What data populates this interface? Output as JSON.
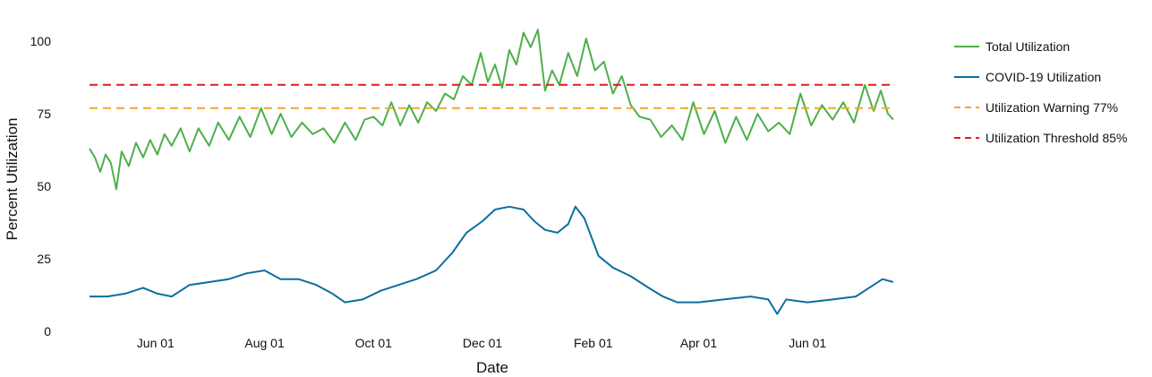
{
  "chart_data": {
    "type": "line",
    "xlabel": "Date",
    "ylabel": "Percent Utilization",
    "grid": false,
    "legend_position": "right",
    "x_range": [
      "2020-04-25",
      "2021-07-19"
    ],
    "ylim": [
      0,
      105
    ],
    "y_ticks": [
      0,
      25,
      50,
      75,
      100
    ],
    "y_tick_labels": [
      "0",
      "25",
      "50",
      "75",
      "100"
    ],
    "x_ticks": [
      "2020-06-01",
      "2020-08-01",
      "2020-10-01",
      "2020-12-01",
      "2021-02-01",
      "2021-04-01",
      "2021-06-01"
    ],
    "x_tick_labels": [
      "Jun 01",
      "Aug 01",
      "Oct 01",
      "Dec 01",
      "Feb 01",
      "Apr 01",
      "Jun 01"
    ],
    "series": [
      {
        "name": "Total Utilization",
        "color": "#4daf4a",
        "style": "solid",
        "points": [
          [
            "2020-04-25",
            63
          ],
          [
            "2020-04-28",
            60
          ],
          [
            "2020-05-01",
            55
          ],
          [
            "2020-05-04",
            61
          ],
          [
            "2020-05-07",
            58
          ],
          [
            "2020-05-10",
            49
          ],
          [
            "2020-05-13",
            62
          ],
          [
            "2020-05-17",
            57
          ],
          [
            "2020-05-21",
            65
          ],
          [
            "2020-05-25",
            60
          ],
          [
            "2020-05-29",
            66
          ],
          [
            "2020-06-02",
            61
          ],
          [
            "2020-06-06",
            68
          ],
          [
            "2020-06-10",
            64
          ],
          [
            "2020-06-15",
            70
          ],
          [
            "2020-06-20",
            62
          ],
          [
            "2020-06-25",
            70
          ],
          [
            "2020-07-01",
            64
          ],
          [
            "2020-07-06",
            72
          ],
          [
            "2020-07-12",
            66
          ],
          [
            "2020-07-18",
            74
          ],
          [
            "2020-07-24",
            67
          ],
          [
            "2020-07-30",
            77
          ],
          [
            "2020-08-05",
            68
          ],
          [
            "2020-08-10",
            75
          ],
          [
            "2020-08-16",
            67
          ],
          [
            "2020-08-22",
            72
          ],
          [
            "2020-08-28",
            68
          ],
          [
            "2020-09-03",
            70
          ],
          [
            "2020-09-09",
            65
          ],
          [
            "2020-09-15",
            72
          ],
          [
            "2020-09-21",
            66
          ],
          [
            "2020-09-26",
            73
          ],
          [
            "2020-10-01",
            74
          ],
          [
            "2020-10-06",
            71
          ],
          [
            "2020-10-11",
            79
          ],
          [
            "2020-10-16",
            71
          ],
          [
            "2020-10-21",
            78
          ],
          [
            "2020-10-26",
            72
          ],
          [
            "2020-10-31",
            79
          ],
          [
            "2020-11-05",
            76
          ],
          [
            "2020-11-10",
            82
          ],
          [
            "2020-11-15",
            80
          ],
          [
            "2020-11-20",
            88
          ],
          [
            "2020-11-25",
            85
          ],
          [
            "2020-11-30",
            96
          ],
          [
            "2020-12-04",
            86
          ],
          [
            "2020-12-08",
            92
          ],
          [
            "2020-12-12",
            84
          ],
          [
            "2020-12-16",
            97
          ],
          [
            "2020-12-20",
            92
          ],
          [
            "2020-12-24",
            103
          ],
          [
            "2020-12-28",
            98
          ],
          [
            "2021-01-01",
            104
          ],
          [
            "2021-01-05",
            83
          ],
          [
            "2021-01-09",
            90
          ],
          [
            "2021-01-13",
            85
          ],
          [
            "2021-01-18",
            96
          ],
          [
            "2021-01-23",
            88
          ],
          [
            "2021-01-28",
            101
          ],
          [
            "2021-02-02",
            90
          ],
          [
            "2021-02-07",
            93
          ],
          [
            "2021-02-12",
            82
          ],
          [
            "2021-02-17",
            88
          ],
          [
            "2021-02-22",
            78
          ],
          [
            "2021-02-27",
            74
          ],
          [
            "2021-03-05",
            73
          ],
          [
            "2021-03-11",
            67
          ],
          [
            "2021-03-17",
            71
          ],
          [
            "2021-03-23",
            66
          ],
          [
            "2021-03-29",
            79
          ],
          [
            "2021-04-04",
            68
          ],
          [
            "2021-04-10",
            76
          ],
          [
            "2021-04-16",
            65
          ],
          [
            "2021-04-22",
            74
          ],
          [
            "2021-04-28",
            66
          ],
          [
            "2021-05-04",
            75
          ],
          [
            "2021-05-10",
            69
          ],
          [
            "2021-05-16",
            72
          ],
          [
            "2021-05-22",
            68
          ],
          [
            "2021-05-28",
            82
          ],
          [
            "2021-06-03",
            71
          ],
          [
            "2021-06-09",
            78
          ],
          [
            "2021-06-15",
            73
          ],
          [
            "2021-06-21",
            79
          ],
          [
            "2021-06-27",
            72
          ],
          [
            "2021-07-03",
            85
          ],
          [
            "2021-07-08",
            76
          ],
          [
            "2021-07-12",
            83
          ],
          [
            "2021-07-16",
            75
          ],
          [
            "2021-07-19",
            73
          ]
        ]
      },
      {
        "name": "COVID-19 Utilization",
        "color": "#0d6ea0",
        "style": "solid",
        "points": [
          [
            "2020-04-25",
            12
          ],
          [
            "2020-05-05",
            12
          ],
          [
            "2020-05-15",
            13
          ],
          [
            "2020-05-25",
            15
          ],
          [
            "2020-06-02",
            13
          ],
          [
            "2020-06-10",
            12
          ],
          [
            "2020-06-20",
            16
          ],
          [
            "2020-07-01",
            17
          ],
          [
            "2020-07-12",
            18
          ],
          [
            "2020-07-22",
            20
          ],
          [
            "2020-08-01",
            21
          ],
          [
            "2020-08-10",
            18
          ],
          [
            "2020-08-20",
            18
          ],
          [
            "2020-08-30",
            16
          ],
          [
            "2020-09-08",
            13
          ],
          [
            "2020-09-15",
            10
          ],
          [
            "2020-09-25",
            11
          ],
          [
            "2020-10-05",
            14
          ],
          [
            "2020-10-15",
            16
          ],
          [
            "2020-10-25",
            18
          ],
          [
            "2020-11-05",
            21
          ],
          [
            "2020-11-14",
            27
          ],
          [
            "2020-11-22",
            34
          ],
          [
            "2020-12-01",
            38
          ],
          [
            "2020-12-08",
            42
          ],
          [
            "2020-12-16",
            43
          ],
          [
            "2020-12-24",
            42
          ],
          [
            "2020-12-30",
            38
          ],
          [
            "2021-01-05",
            35
          ],
          [
            "2021-01-12",
            34
          ],
          [
            "2021-01-18",
            37
          ],
          [
            "2021-01-22",
            43
          ],
          [
            "2021-01-27",
            39
          ],
          [
            "2021-02-04",
            26
          ],
          [
            "2021-02-12",
            22
          ],
          [
            "2021-02-22",
            19
          ],
          [
            "2021-03-04",
            15
          ],
          [
            "2021-03-12",
            12
          ],
          [
            "2021-03-20",
            10
          ],
          [
            "2021-04-01",
            10
          ],
          [
            "2021-04-15",
            11
          ],
          [
            "2021-04-30",
            12
          ],
          [
            "2021-05-10",
            11
          ],
          [
            "2021-05-15",
            6
          ],
          [
            "2021-05-20",
            11
          ],
          [
            "2021-06-01",
            10
          ],
          [
            "2021-06-15",
            11
          ],
          [
            "2021-06-28",
            12
          ],
          [
            "2021-07-08",
            16
          ],
          [
            "2021-07-13",
            18
          ],
          [
            "2021-07-19",
            17
          ]
        ]
      },
      {
        "name": "Utilization Warning 77%",
        "color": "#f5a623",
        "style": "dashed",
        "points": [
          [
            "2020-04-25",
            77
          ],
          [
            "2021-07-19",
            77
          ]
        ]
      },
      {
        "name": "Utilization Threshold 85%",
        "color": "#e41a1c",
        "style": "dashed",
        "points": [
          [
            "2020-04-25",
            85
          ],
          [
            "2021-07-19",
            85
          ]
        ]
      }
    ]
  }
}
